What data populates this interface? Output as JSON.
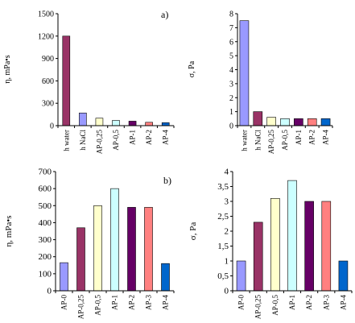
{
  "panel_labels": {
    "a": "a)",
    "b": "b)"
  },
  "chart_data": [
    {
      "id": "a-left",
      "type": "bar",
      "title": "",
      "xlabel": "",
      "ylabel": "η, mPa•s",
      "ylim": [
        0,
        1500
      ],
      "yticks": [
        0,
        300,
        600,
        900,
        1200,
        1500
      ],
      "grid": false,
      "categories": [
        "h water",
        "h NaCl",
        "AP-0,25",
        "AP-0,5",
        "AP-1",
        "AP-2",
        "AP-4"
      ],
      "values": [
        1200,
        170,
        100,
        70,
        60,
        45,
        40
      ],
      "colors": [
        "#993366",
        "#9999FF",
        "#FFFFCC",
        "#CCFFFF",
        "#660066",
        "#FF8080",
        "#0066CC"
      ]
    },
    {
      "id": "a-right",
      "type": "bar",
      "title": "",
      "xlabel": "",
      "ylabel": "σ, Pa",
      "ylim": [
        0,
        8
      ],
      "yticks": [
        0,
        1,
        2,
        3,
        4,
        5,
        6,
        7,
        8
      ],
      "grid": false,
      "categories": [
        "h water",
        "h NaCl",
        "AP-0,25",
        "AP-0,5",
        "AP-1",
        "AP-2",
        "AP-4"
      ],
      "values": [
        7.5,
        1.0,
        0.6,
        0.5,
        0.5,
        0.5,
        0.5
      ],
      "colors": [
        "#9999FF",
        "#993366",
        "#FFFFCC",
        "#CCFFFF",
        "#660066",
        "#FF8080",
        "#0066CC"
      ]
    },
    {
      "id": "b-left",
      "type": "bar",
      "title": "",
      "xlabel": "",
      "ylabel": "η, mPa•s",
      "ylim": [
        0,
        700
      ],
      "yticks": [
        0,
        100,
        200,
        300,
        400,
        500,
        600,
        700
      ],
      "grid": false,
      "categories": [
        "AP-0",
        "AP-0,25",
        "AP-0,5",
        "AP-1",
        "AP-2",
        "AP-3",
        "AP-4"
      ],
      "values": [
        165,
        370,
        500,
        600,
        490,
        490,
        160
      ],
      "colors": [
        "#9999FF",
        "#993366",
        "#FFFFCC",
        "#CCFFFF",
        "#660066",
        "#FF8080",
        "#0066CC"
      ]
    },
    {
      "id": "b-right",
      "type": "bar",
      "title": "",
      "xlabel": "",
      "ylabel": "σ, Pa",
      "ylim": [
        0,
        4
      ],
      "yticks": [
        0,
        0.5,
        1,
        1.5,
        2,
        2.5,
        3,
        3.5,
        4
      ],
      "ytick_labels": [
        "0",
        "0,5",
        "1",
        "1,5",
        "2",
        "2,5",
        "3",
        "3,5",
        "4"
      ],
      "grid": false,
      "categories": [
        "AP-0",
        "AP-0,25",
        "AP-0,5",
        "AP-1",
        "AP-2",
        "AP-3",
        "AP-4"
      ],
      "values": [
        1.0,
        2.3,
        3.1,
        3.7,
        3.0,
        3.0,
        1.0
      ],
      "colors": [
        "#9999FF",
        "#993366",
        "#FFFFCC",
        "#CCFFFF",
        "#660066",
        "#FF8080",
        "#0066CC"
      ]
    }
  ]
}
